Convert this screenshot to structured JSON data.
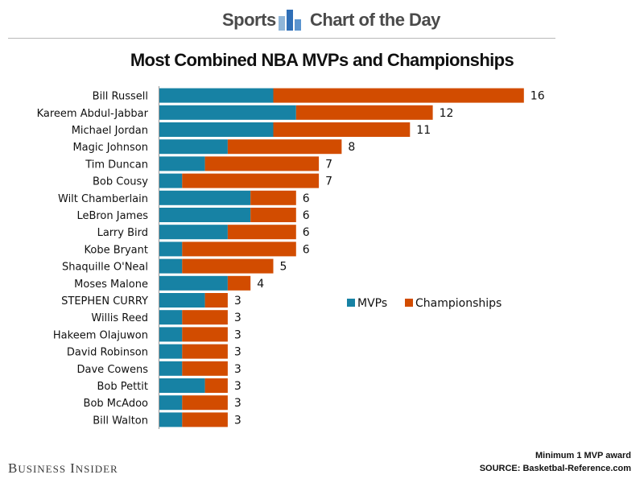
{
  "header": {
    "section": "Sports",
    "feature": "Chart of the Day"
  },
  "colors": {
    "mvps": "#1782a4",
    "championships": "#d24c00",
    "axis": "#9a9a9a"
  },
  "footer": {
    "brand": "Business Insider",
    "note": "Minimum 1 MVP award",
    "source": "SOURCE: Basketbal-Reference.com"
  },
  "chart_data": {
    "type": "bar",
    "orientation": "horizontal",
    "stacked": true,
    "title": "Most Combined NBA MVPs and Championships",
    "categories": [
      "Bill Russell",
      "Kareem Abdul-Jabbar",
      "Michael Jordan",
      "Magic Johnson",
      "Tim Duncan",
      "Bob Cousy",
      "Wilt Chamberlain",
      "LeBron James",
      "Larry Bird",
      "Kobe Bryant",
      "Shaquille O'Neal",
      "Moses Malone",
      "STEPHEN CURRY",
      "Willis Reed",
      "Hakeem Olajuwon",
      "David Robinson",
      "Dave Cowens",
      "Bob Pettit",
      "Bob McAdoo",
      "Bill Walton"
    ],
    "series": [
      {
        "name": "MVPs",
        "values": [
          5,
          6,
          5,
          3,
          2,
          1,
          4,
          4,
          3,
          1,
          1,
          3,
          2,
          1,
          1,
          1,
          1,
          2,
          1,
          1
        ]
      },
      {
        "name": "Championships",
        "values": [
          11,
          6,
          6,
          5,
          5,
          6,
          2,
          2,
          3,
          5,
          4,
          1,
          1,
          2,
          2,
          2,
          2,
          1,
          2,
          2
        ]
      }
    ],
    "totals": [
      16,
      12,
      11,
      8,
      7,
      7,
      6,
      6,
      6,
      6,
      5,
      4,
      3,
      3,
      3,
      3,
      3,
      3,
      3,
      3
    ],
    "xlim": [
      0,
      16
    ],
    "legend_position": "right-middle",
    "grid": false
  }
}
